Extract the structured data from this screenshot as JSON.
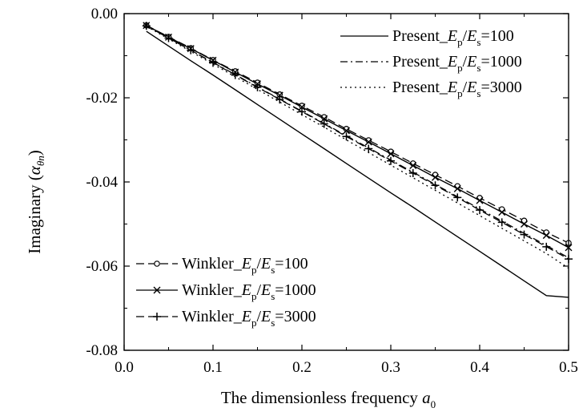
{
  "chart_data": {
    "type": "line",
    "title": "",
    "xlabel": "The dimensionless frequency a0",
    "ylabel": "Imaginary (αθn)",
    "xlim": [
      0.0,
      0.5
    ],
    "ylim": [
      -0.08,
      0.0
    ],
    "x_ticks": [
      "0.0",
      "0.1",
      "0.2",
      "0.3",
      "0.4",
      "0.5"
    ],
    "y_ticks": [
      "0.00",
      "-0.02",
      "-0.04",
      "-0.06",
      "-0.08"
    ],
    "grid": false,
    "legend_upper_placement": "top-right",
    "legend_lower_placement": "bottom-left",
    "x": [
      0.025,
      0.05,
      0.075,
      0.1,
      0.125,
      0.15,
      0.175,
      0.2,
      0.225,
      0.25,
      0.275,
      0.3,
      0.325,
      0.35,
      0.375,
      0.4,
      0.425,
      0.45,
      0.475,
      0.5
    ],
    "series": [
      {
        "legend_prefix": "Present_",
        "ratio": "100",
        "style": "solid",
        "marker": "none",
        "values": [
          -0.0042,
          -0.0077,
          -0.0112,
          -0.0146,
          -0.0181,
          -0.0216,
          -0.0251,
          -0.0286,
          -0.0321,
          -0.0356,
          -0.0391,
          -0.0426,
          -0.046,
          -0.0495,
          -0.053,
          -0.0565,
          -0.06,
          -0.0635,
          -0.067,
          -0.0674
        ]
      },
      {
        "legend_prefix": "Present_",
        "ratio": "1000",
        "style": "dashdot",
        "marker": "none",
        "values": [
          -0.0029,
          -0.0058,
          -0.0087,
          -0.0116,
          -0.0145,
          -0.0174,
          -0.0203,
          -0.0232,
          -0.0261,
          -0.029,
          -0.0319,
          -0.0348,
          -0.0377,
          -0.0406,
          -0.0435,
          -0.0464,
          -0.0493,
          -0.0522,
          -0.0551,
          -0.058
        ]
      },
      {
        "legend_prefix": "Present_",
        "ratio": "3000",
        "style": "dotted",
        "marker": "none",
        "values": [
          -0.003,
          -0.006,
          -0.009,
          -0.012,
          -0.015,
          -0.018,
          -0.021,
          -0.024,
          -0.027,
          -0.03,
          -0.033,
          -0.036,
          -0.039,
          -0.042,
          -0.045,
          -0.048,
          -0.051,
          -0.054,
          -0.057,
          -0.0605
        ]
      },
      {
        "legend_prefix": "Winkler_",
        "ratio": "100",
        "style": "dashed",
        "marker": "circle",
        "values": [
          -0.0028,
          -0.0055,
          -0.0082,
          -0.011,
          -0.0137,
          -0.0164,
          -0.0192,
          -0.0219,
          -0.0246,
          -0.0274,
          -0.0301,
          -0.0328,
          -0.0356,
          -0.0383,
          -0.041,
          -0.0438,
          -0.0465,
          -0.0492,
          -0.052,
          -0.0545
        ]
      },
      {
        "legend_prefix": "Winkler_",
        "ratio": "1000",
        "style": "solid",
        "marker": "x",
        "values": [
          -0.0028,
          -0.0056,
          -0.0083,
          -0.0111,
          -0.0139,
          -0.0167,
          -0.0194,
          -0.0222,
          -0.025,
          -0.0278,
          -0.0305,
          -0.0333,
          -0.0361,
          -0.0389,
          -0.0416,
          -0.0444,
          -0.0472,
          -0.05,
          -0.0527,
          -0.0556
        ]
      },
      {
        "legend_prefix": "Winkler_",
        "ratio": "3000",
        "style": "dashed",
        "marker": "plus",
        "values": [
          -0.0029,
          -0.0058,
          -0.0087,
          -0.0117,
          -0.0146,
          -0.0175,
          -0.0204,
          -0.0233,
          -0.0262,
          -0.0292,
          -0.0321,
          -0.035,
          -0.0379,
          -0.0408,
          -0.0437,
          -0.0467,
          -0.0496,
          -0.0525,
          -0.0554,
          -0.0583
        ]
      }
    ],
    "legend_subscripts": {
      "E": "E",
      "p": "p",
      "s": "s",
      "sep": "/",
      "eq": "="
    }
  }
}
